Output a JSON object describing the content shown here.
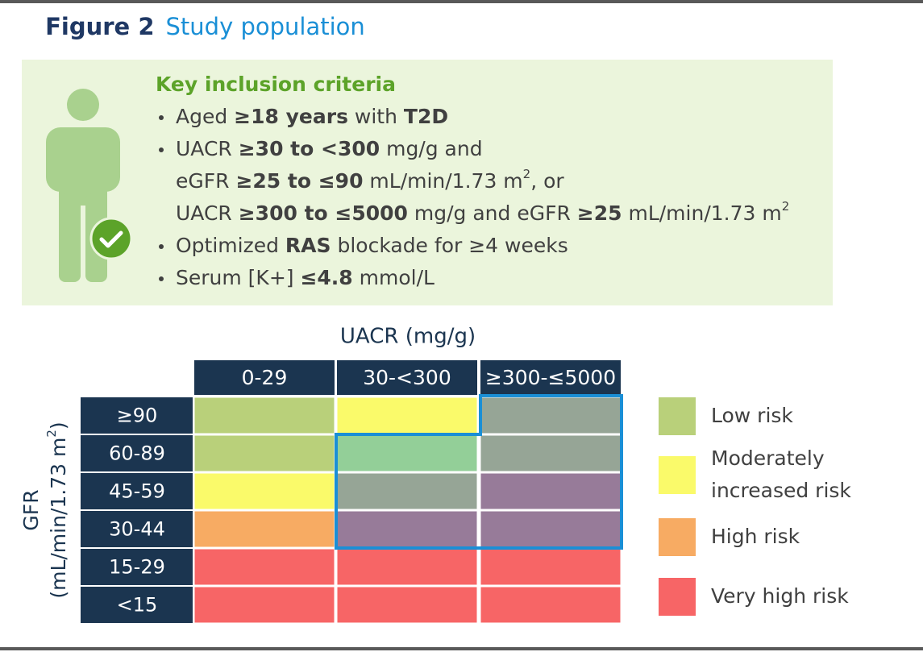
{
  "header": {
    "label": "Figure 2",
    "title": "Study population"
  },
  "criteria": {
    "heading": "Key inclusion criteria",
    "items": [
      {
        "lines": [
          [
            {
              "text": "Aged "
            },
            {
              "text": "≥18 years",
              "style": "bold"
            },
            {
              "text": " with "
            },
            {
              "text": "T2D",
              "style": "bold"
            }
          ]
        ]
      },
      {
        "lines": [
          [
            {
              "text": "UACR "
            },
            {
              "text": "≥30 to <300",
              "style": "bold"
            },
            {
              "text": " mg/g and"
            }
          ],
          [
            {
              "text": "eGFR "
            },
            {
              "text": "≥25 to ≤90",
              "style": "bold"
            },
            {
              "text": " mL/min/1.73 m"
            },
            {
              "text": "2",
              "style": "sup"
            },
            {
              "text": ", or"
            }
          ],
          [
            {
              "text": "UACR "
            },
            {
              "text": "≥300 to ≤5000",
              "style": "bold"
            },
            {
              "text": " mg/g and eGFR "
            },
            {
              "text": "≥25",
              "style": "bold"
            },
            {
              "text": " mL/min/1.73 m"
            },
            {
              "text": "2",
              "style": "sup"
            }
          ]
        ]
      },
      {
        "lines": [
          [
            {
              "text": "Optimized "
            },
            {
              "text": "RAS",
              "style": "bold"
            },
            {
              "text": " blockade for ≥4 weeks"
            }
          ]
        ]
      },
      {
        "lines": [
          [
            {
              "text": "Serum [K+] "
            },
            {
              "text": "≤4.8",
              "style": "bold"
            },
            {
              "text": " mmol/L"
            }
          ]
        ]
      }
    ]
  },
  "grid": {
    "column_title": "UACR (mg/g)",
    "row_title": [
      [
        {
          "text": "GFR"
        }
      ],
      [
        {
          "text": "(mL/min/1.73 m"
        },
        {
          "text": "2",
          "style": "sup"
        },
        {
          "text": ")"
        }
      ]
    ],
    "columns": [
      "0-29",
      "30-<300",
      "≥300-≤5000"
    ],
    "rows": [
      "≥90",
      "60-89",
      "45-59",
      "30-44",
      "15-29",
      "<15"
    ],
    "cells": [
      [
        "#b9d07a",
        "#fafa6a",
        "#96a596"
      ],
      [
        "#b9d07a",
        "#93cf98",
        "#96a596"
      ],
      [
        "#fafa6a",
        "#96a596",
        "#977b99"
      ],
      [
        "#f7ab63",
        "#977b99",
        "#977b99"
      ],
      [
        "#f76566",
        "#f76566",
        "#f76566"
      ],
      [
        "#f76566",
        "#f76566",
        "#f76566"
      ]
    ]
  },
  "legend": [
    {
      "label": [
        "Low risk"
      ],
      "color": "#b9d07a"
    },
    {
      "label": [
        "Moderately",
        "increased risk"
      ],
      "color": "#fafa6a"
    },
    {
      "label": [
        "High risk"
      ],
      "color": "#f7ab63"
    },
    {
      "label": [
        "Very high risk"
      ],
      "color": "#f76566"
    }
  ]
}
